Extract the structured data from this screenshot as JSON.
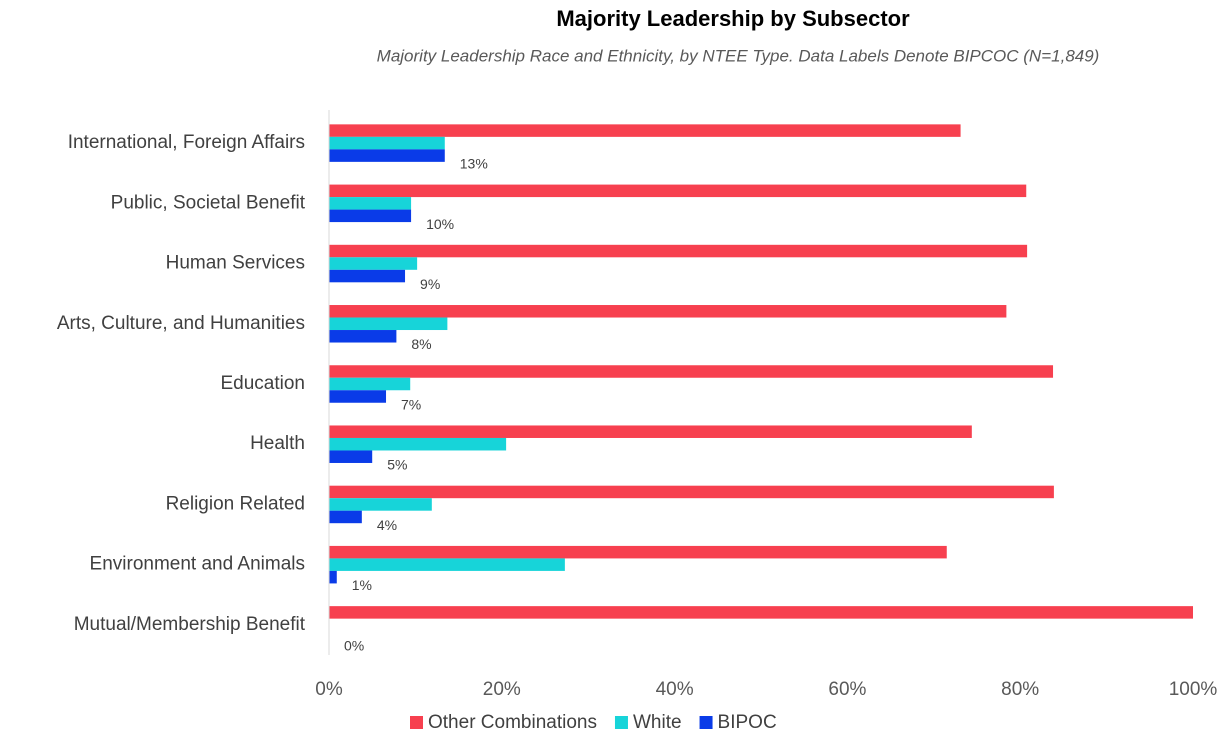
{
  "chart_data": {
    "type": "bar",
    "orientation": "horizontal",
    "title": "Majority Leadership by Subsector",
    "subtitle": "Majority Leadership Race and Ethnicity, by NTEE Type. Data Labels Denote BIPCOC (N=1,849)",
    "categories": [
      "International, Foreign Affairs",
      "Public, Societal Benefit",
      "Human Services",
      "Arts, Culture, and Humanities",
      "Education",
      "Health",
      "Religion Related",
      "Environment and Animals",
      "Mutual/Membership Benefit"
    ],
    "series": [
      {
        "name": "Other Combinations",
        "color": "#f7404f",
        "values": [
          73.1,
          80.7,
          80.8,
          78.4,
          83.8,
          74.4,
          83.9,
          71.5,
          100
        ]
      },
      {
        "name": "White",
        "color": "#17d4d9",
        "values": [
          13.4,
          9.5,
          10.2,
          13.7,
          9.4,
          20.5,
          11.9,
          27.3,
          0
        ]
      },
      {
        "name": "BIPOC",
        "color": "#0a3be8",
        "values": [
          13.4,
          9.5,
          8.8,
          7.8,
          6.6,
          5.0,
          3.8,
          0.9,
          0
        ],
        "value_labels": [
          "13%",
          "10%",
          "9%",
          "8%",
          "7%",
          "5%",
          "4%",
          "1%",
          "0%"
        ]
      }
    ],
    "xlim": [
      0,
      100
    ],
    "xticks": [
      {
        "value": 0,
        "label": "0%"
      },
      {
        "value": 20,
        "label": "20%"
      },
      {
        "value": 40,
        "label": "40%"
      },
      {
        "value": 60,
        "label": "60%"
      },
      {
        "value": 80,
        "label": "80%"
      },
      {
        "value": 100,
        "label": "100%"
      }
    ],
    "legend": "bottom"
  }
}
